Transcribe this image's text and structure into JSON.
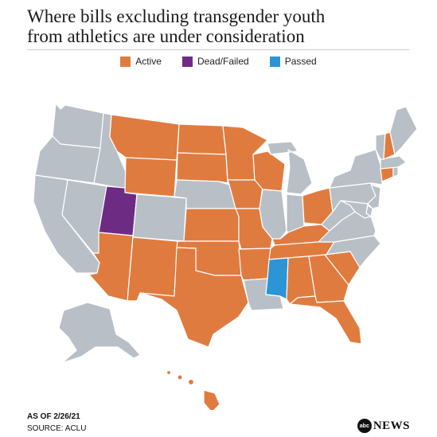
{
  "title": {
    "line1": "Where bills excluding transgender youth",
    "line2": "from athletics are under consideration"
  },
  "legend": [
    {
      "key": "active",
      "label": "Active",
      "color": "#e07b3f"
    },
    {
      "key": "dead",
      "label": "Dead/Failed",
      "color": "#6e2b84"
    },
    {
      "key": "passed",
      "label": "Passed",
      "color": "#2b95d6"
    }
  ],
  "colors": {
    "none": "#b9bfc6",
    "active": "#e07b3f",
    "dead": "#6e2b84",
    "passed": "#2b95d6"
  },
  "states": {
    "WA": "none",
    "OR": "none",
    "CA": "none",
    "NV": "none",
    "ID": "none",
    "MT": "active",
    "WY": "active",
    "UT": "dead",
    "AZ": "active",
    "NM": "active",
    "CO": "none",
    "ND": "active",
    "SD": "active",
    "NE": "none",
    "KS": "active",
    "OK": "active",
    "TX": "active",
    "MN": "active",
    "IA": "active",
    "MO": "active",
    "AR": "active",
    "LA": "none",
    "WI": "active",
    "IL": "none",
    "MI": "none",
    "IN": "none",
    "OH": "active",
    "KY": "active",
    "TN": "active",
    "MS": "passed",
    "AL": "active",
    "GA": "active",
    "FL": "active",
    "SC": "active",
    "NC": "none",
    "VA": "none",
    "WV": "none",
    "PA": "none",
    "NY": "none",
    "VT": "none",
    "NH": "active",
    "ME": "none",
    "MA": "none",
    "CT": "active",
    "RI": "none",
    "NJ": "none",
    "DE": "none",
    "MD": "none",
    "AK": "none",
    "HI": "active"
  },
  "footer": {
    "date": "AS OF 2/26/21",
    "source": "SOURCE: ACLU",
    "brand_abc": "abc",
    "brand_news": "NEWS"
  }
}
